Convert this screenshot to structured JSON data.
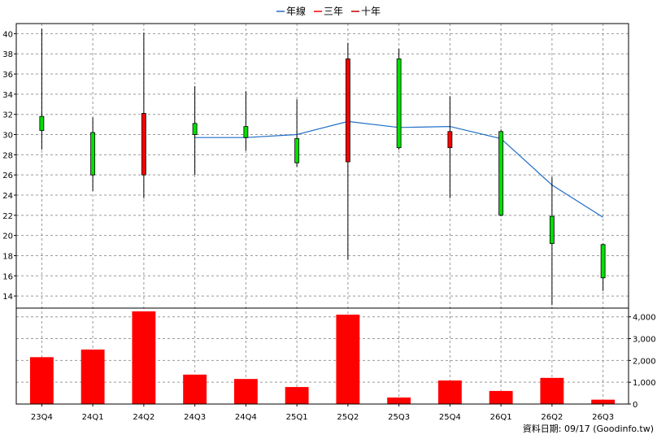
{
  "chart_data": {
    "type": "candlestick",
    "legend": [
      {
        "name": "年線",
        "color": "#1f6fc8",
        "style": "line"
      },
      {
        "name": "三年",
        "color": "#ff0000",
        "style": "line"
      },
      {
        "name": "十年",
        "color": "#c00000",
        "style": "line"
      }
    ],
    "categories": [
      "23Q4",
      "24Q1",
      "24Q2",
      "24Q3",
      "24Q4",
      "25Q1",
      "25Q2",
      "25Q3",
      "25Q4",
      "26Q1",
      "26Q2",
      "26Q3"
    ],
    "price_axis": {
      "ylim": [
        12.8,
        41.0
      ],
      "ticks": [
        14,
        16,
        18,
        20,
        22,
        24,
        26,
        28,
        30,
        32,
        34,
        36,
        38,
        40
      ]
    },
    "volume_axis": {
      "ylim": [
        0,
        4400
      ],
      "ticks": [
        0,
        1000,
        2000,
        3000,
        4000
      ],
      "tick_labels": [
        "0",
        "1,000",
        "2,000",
        "3,000",
        "4,000"
      ]
    },
    "candles": [
      {
        "open": 30.4,
        "high": 40.5,
        "low": 28.5,
        "close": 31.8,
        "direction": "up"
      },
      {
        "open": 26.0,
        "high": 31.7,
        "low": 24.4,
        "close": 30.2,
        "direction": "up"
      },
      {
        "open": 32.1,
        "high": 40.1,
        "low": 23.7,
        "close": 26.0,
        "direction": "down"
      },
      {
        "open": 30.0,
        "high": 34.8,
        "low": 26.0,
        "close": 31.1,
        "direction": "up"
      },
      {
        "open": 29.7,
        "high": 34.3,
        "low": 28.4,
        "close": 30.8,
        "direction": "up"
      },
      {
        "open": 27.2,
        "high": 33.5,
        "low": 26.8,
        "close": 29.6,
        "direction": "up"
      },
      {
        "open": 37.5,
        "high": 39.1,
        "low": 17.6,
        "close": 27.3,
        "direction": "down"
      },
      {
        "open": 28.7,
        "high": 38.5,
        "low": 28.5,
        "close": 37.5,
        "direction": "up"
      },
      {
        "open": 30.3,
        "high": 33.8,
        "low": 23.7,
        "close": 28.7,
        "direction": "down"
      },
      {
        "open": 22.0,
        "high": 30.5,
        "low": 21.9,
        "close": 30.3,
        "direction": "up"
      },
      {
        "open": 19.2,
        "high": 25.8,
        "low": 13.1,
        "close": 21.9,
        "direction": "up"
      },
      {
        "open": 15.8,
        "high": 19.2,
        "low": 14.5,
        "close": 19.1,
        "direction": "up"
      }
    ],
    "annual_line": [
      null,
      null,
      null,
      29.7,
      29.7,
      30.0,
      31.3,
      30.7,
      30.8,
      29.6,
      25.0,
      21.8
    ],
    "volume": [
      2150,
      2500,
      4250,
      1350,
      1150,
      780,
      4100,
      300,
      1080,
      600,
      1200,
      200
    ],
    "colors": {
      "up": "#00e000",
      "down": "#ff0000",
      "volume": "#ff0000",
      "annual": "#1f6fc8"
    },
    "grid": true
  },
  "footer": {
    "credit": "資料日期: 09/17  (Goodinfo.tw)"
  }
}
